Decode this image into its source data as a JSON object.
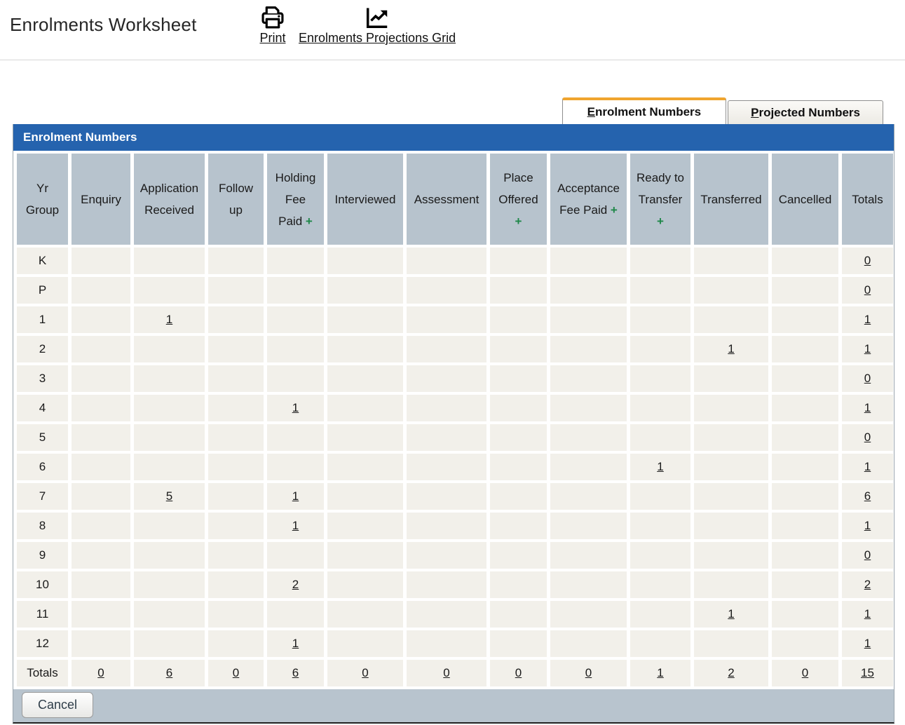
{
  "header": {
    "title": "Enrolments Worksheet",
    "print_label": "Print",
    "projections_label": "Enrolments Projections Grid"
  },
  "tabs": [
    {
      "label": "Enrolment Numbers",
      "active": true
    },
    {
      "label": "Projected Numbers",
      "active": false
    }
  ],
  "panel_title": "Enrolment Numbers",
  "table": {
    "columns": [
      {
        "label": "Yr Group"
      },
      {
        "label": "Enquiry"
      },
      {
        "label": "Application Received"
      },
      {
        "label": "Follow up"
      },
      {
        "label": "Holding Fee Paid",
        "plus": true
      },
      {
        "label": "Interviewed"
      },
      {
        "label": "Assessment"
      },
      {
        "label": "Place Offered",
        "plus": true
      },
      {
        "label": "Acceptance Fee Paid",
        "plus": true
      },
      {
        "label": "Ready to Transfer",
        "plus": true
      },
      {
        "label": "Transferred"
      },
      {
        "label": "Cancelled"
      },
      {
        "label": "Totals"
      }
    ],
    "rows": [
      {
        "label": "K",
        "cells": [
          "",
          "",
          "",
          "",
          "",
          "",
          "",
          "",
          "",
          "",
          ""
        ],
        "total": "0"
      },
      {
        "label": "P",
        "cells": [
          "",
          "",
          "",
          "",
          "",
          "",
          "",
          "",
          "",
          "",
          ""
        ],
        "total": "0"
      },
      {
        "label": "1",
        "cells": [
          "",
          "1",
          "",
          "",
          "",
          "",
          "",
          "",
          "",
          "",
          ""
        ],
        "total": "1"
      },
      {
        "label": "2",
        "cells": [
          "",
          "",
          "",
          "",
          "",
          "",
          "",
          "",
          "",
          "1",
          ""
        ],
        "total": "1"
      },
      {
        "label": "3",
        "cells": [
          "",
          "",
          "",
          "",
          "",
          "",
          "",
          "",
          "",
          "",
          ""
        ],
        "total": "0"
      },
      {
        "label": "4",
        "cells": [
          "",
          "",
          "",
          "1",
          "",
          "",
          "",
          "",
          "",
          "",
          ""
        ],
        "total": "1"
      },
      {
        "label": "5",
        "cells": [
          "",
          "",
          "",
          "",
          "",
          "",
          "",
          "",
          "",
          "",
          ""
        ],
        "total": "0"
      },
      {
        "label": "6",
        "cells": [
          "",
          "",
          "",
          "",
          "",
          "",
          "",
          "",
          "1",
          "",
          ""
        ],
        "total": "1"
      },
      {
        "label": "7",
        "cells": [
          "",
          "5",
          "",
          "1",
          "",
          "",
          "",
          "",
          "",
          "",
          ""
        ],
        "total": "6"
      },
      {
        "label": "8",
        "cells": [
          "",
          "",
          "",
          "1",
          "",
          "",
          "",
          "",
          "",
          "",
          ""
        ],
        "total": "1"
      },
      {
        "label": "9",
        "cells": [
          "",
          "",
          "",
          "",
          "",
          "",
          "",
          "",
          "",
          "",
          ""
        ],
        "total": "0"
      },
      {
        "label": "10",
        "cells": [
          "",
          "",
          "",
          "2",
          "",
          "",
          "",
          "",
          "",
          "",
          ""
        ],
        "total": "2"
      },
      {
        "label": "11",
        "cells": [
          "",
          "",
          "",
          "",
          "",
          "",
          "",
          "",
          "",
          "1",
          ""
        ],
        "total": "1"
      },
      {
        "label": "12",
        "cells": [
          "",
          "",
          "",
          "1",
          "",
          "",
          "",
          "",
          "",
          "",
          ""
        ],
        "total": "1"
      },
      {
        "label": "Totals",
        "cells": [
          "0",
          "6",
          "0",
          "6",
          "0",
          "0",
          "0",
          "0",
          "1",
          "2",
          "0"
        ],
        "total": "15"
      }
    ]
  },
  "footer": {
    "cancel_label": "Cancel"
  },
  "colors": {
    "accent_blue": "#2563AE",
    "header_cell": "#B7C3CD",
    "row_bg": "#F2F0EA",
    "plus_green": "#1E8748",
    "tab_orange": "#F0A52F",
    "footer_bar": "#B8C4CE"
  }
}
